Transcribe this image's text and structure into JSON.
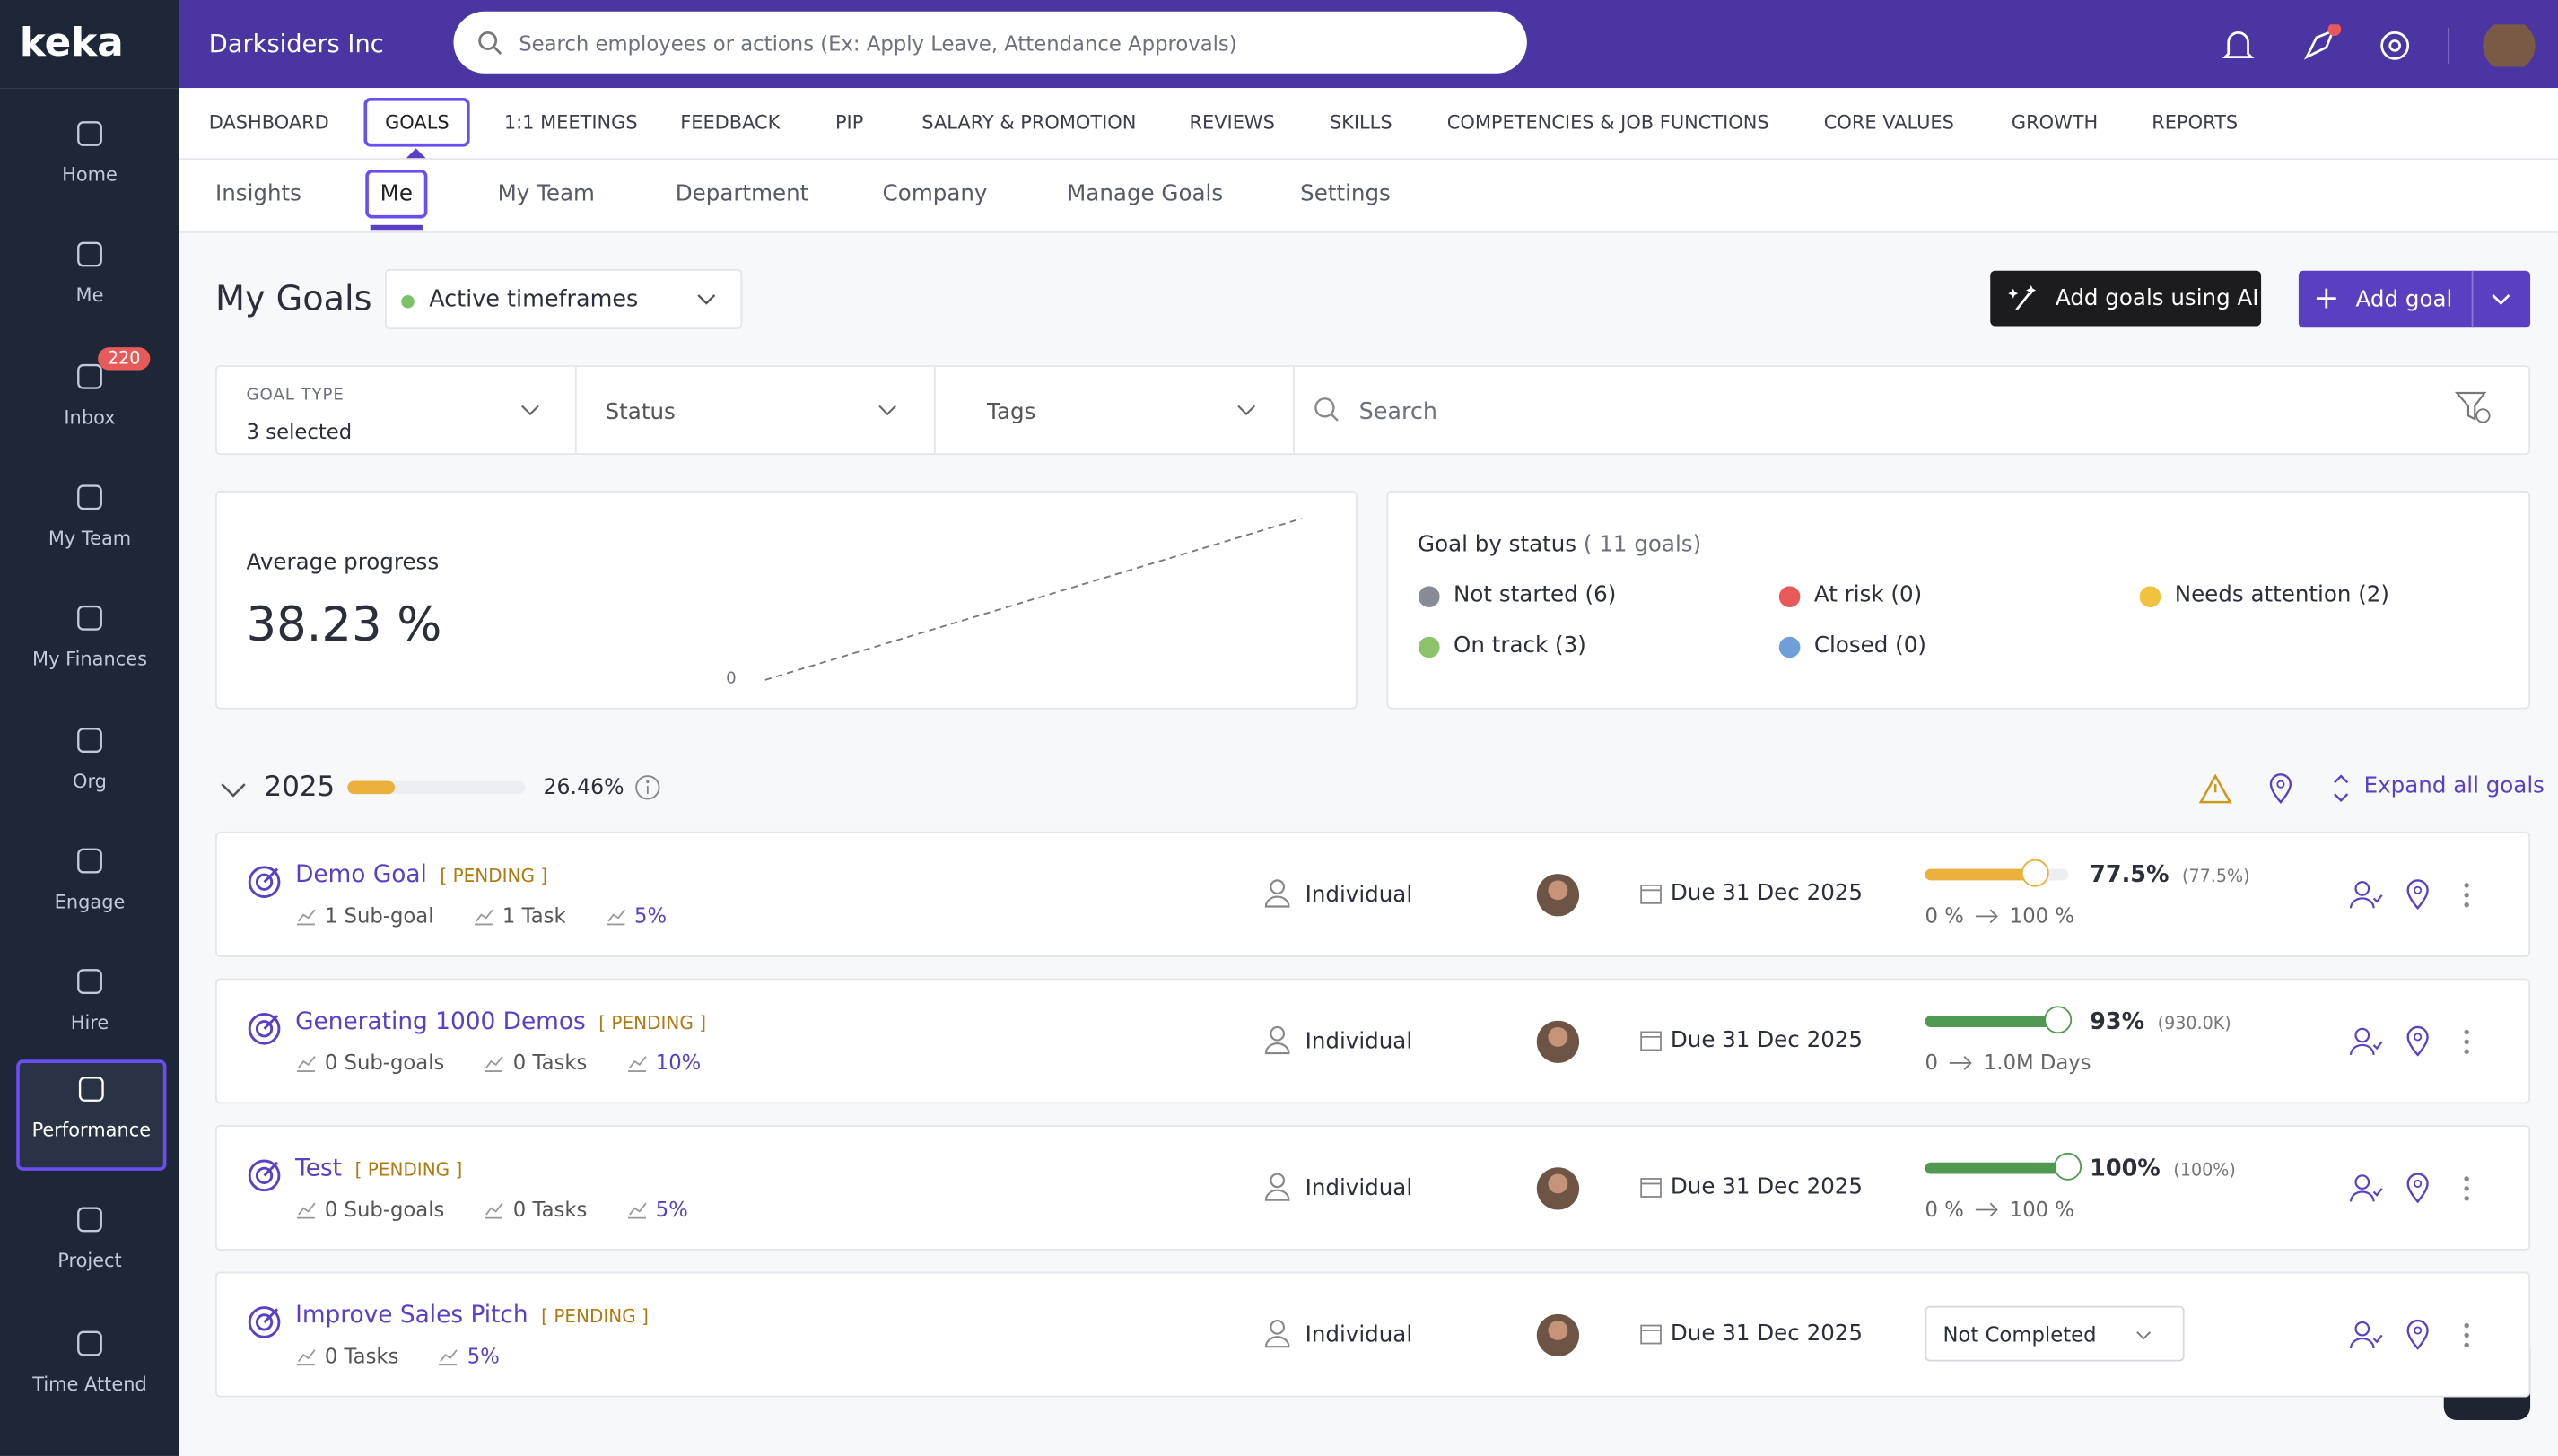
{
  "header": {
    "brand": "keka",
    "company": "Darksiders Inc",
    "search_placeholder": "Search employees or actions (Ex: Apply Leave, Attendance Approvals)"
  },
  "sidebar": [
    {
      "label": "Home"
    },
    {
      "label": "Me"
    },
    {
      "label": "Inbox",
      "badge": "220"
    },
    {
      "label": "My Team"
    },
    {
      "label": "My Finances"
    },
    {
      "label": "Org"
    },
    {
      "label": "Engage"
    },
    {
      "label": "Hire"
    },
    {
      "label": "Performance"
    },
    {
      "label": "Project"
    },
    {
      "label": "Time Attend"
    }
  ],
  "top_tabs": [
    "DASHBOARD",
    "GOALS",
    "1:1 MEETINGS",
    "FEEDBACK",
    "PIP",
    "SALARY & PROMOTION",
    "REVIEWS",
    "SKILLS",
    "COMPETENCIES & JOB FUNCTIONS",
    "CORE VALUES",
    "GROWTH",
    "REPORTS"
  ],
  "sub_tabs": [
    "Insights",
    "Me",
    "My Team",
    "Department",
    "Company",
    "Manage Goals",
    "Settings"
  ],
  "page": {
    "title": "My Goals",
    "timeframe": "Active timeframes",
    "ai_button": "Add goals using AI",
    "add_button": "Add goal"
  },
  "filters": {
    "goal_type_label": "GOAL TYPE",
    "goal_type_value": "3 selected",
    "status": "Status",
    "tags": "Tags",
    "search": "Search"
  },
  "average": {
    "label": "Average progress",
    "value": "38.23 %",
    "axis_label": "0"
  },
  "status": {
    "title": "Goal by status",
    "count": "( 11 goals)",
    "items": [
      {
        "label": "Not started (6)",
        "color": "#868b96"
      },
      {
        "label": "At risk (0)",
        "color": "#e85a5a"
      },
      {
        "label": "Needs attention (2)",
        "color": "#f2c13e"
      },
      {
        "label": "On track (3)",
        "color": "#8cc26a"
      },
      {
        "label": "Closed (0)",
        "color": "#6f9fd8"
      }
    ]
  },
  "year": {
    "label": "2025",
    "progress": 26.46,
    "progress_label": "26.46%",
    "expand": "Expand all goals"
  },
  "goals": [
    {
      "title": "Demo Goal",
      "state": "[ PENDING ]",
      "subgoals": "1 Sub-goal",
      "tasks": "1 Task",
      "weight": "5%",
      "owner": "Individual",
      "due": "Due 31 Dec 2025",
      "progress": 77.5,
      "progress_label": "77.5%",
      "progress_detail": "(77.5%)",
      "range_from": "0 %",
      "range_to": "100 %",
      "color": "#e9b03b"
    },
    {
      "title": "Generating 1000 Demos",
      "state": "[ PENDING ]",
      "subgoals": "0 Sub-goals",
      "tasks": "0 Tasks",
      "weight": "10%",
      "owner": "Individual",
      "due": "Due 31 Dec 2025",
      "progress": 93,
      "progress_label": "93%",
      "progress_detail": "(930.0K)",
      "range_from": "0",
      "range_to": "1.0M Days",
      "color": "#4f9a50"
    },
    {
      "title": "Test",
      "state": "[ PENDING ]",
      "subgoals": "0 Sub-goals",
      "tasks": "0 Tasks",
      "weight": "5%",
      "owner": "Individual",
      "due": "Due 31 Dec 2025",
      "progress": 100,
      "progress_label": "100%",
      "progress_detail": "(100%)",
      "range_from": "0 %",
      "range_to": "100 %",
      "color": "#4f9a50"
    },
    {
      "title": "Improve Sales Pitch",
      "state": "[ PENDING ]",
      "tasks": "0 Tasks",
      "weight": "5%",
      "owner": "Individual",
      "due": "Due 31 Dec 2025",
      "select": "Not Completed"
    }
  ]
}
